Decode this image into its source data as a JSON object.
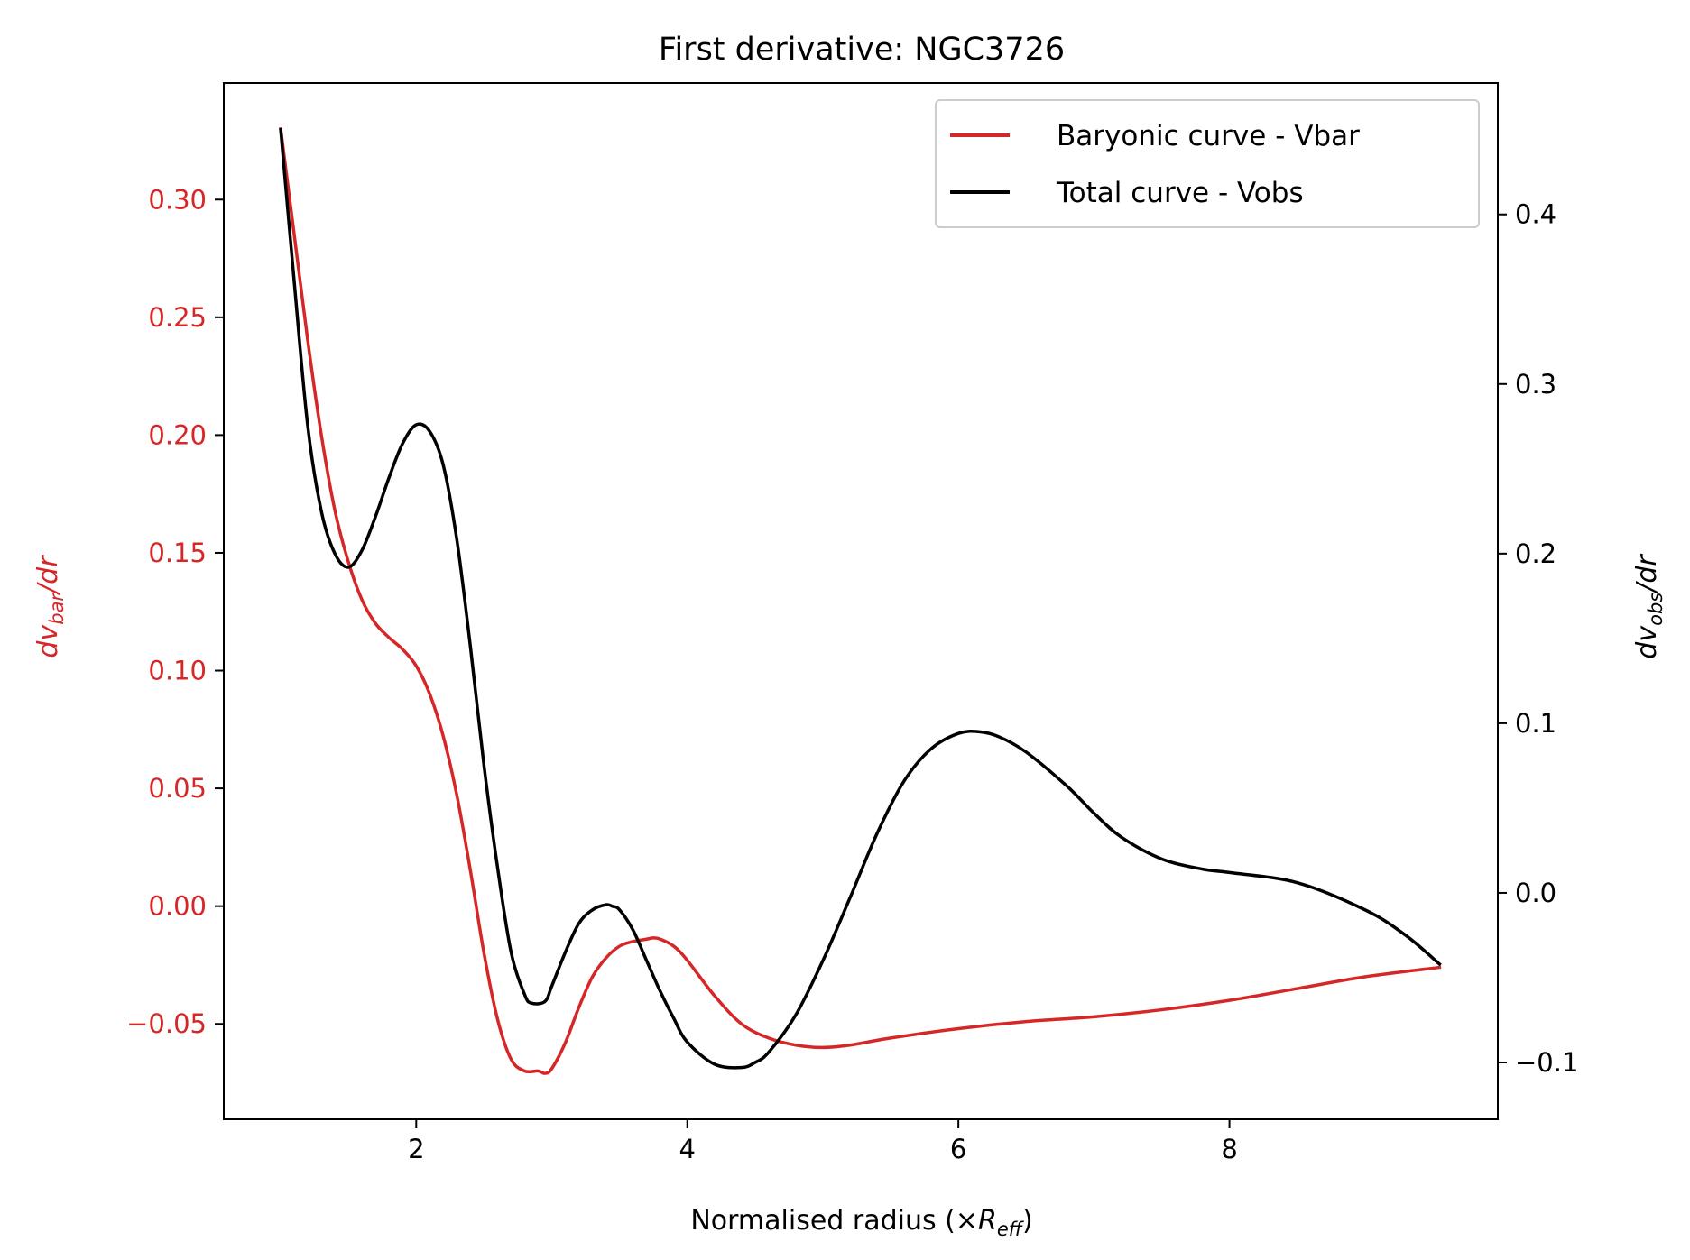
{
  "chart_data": {
    "type": "line",
    "title": "First derivative: NGC3726",
    "xlabel": {
      "main": "Normalised radius (×",
      "var": "R",
      "sub": "eff",
      "close": ")"
    },
    "ylabel_left": {
      "d": "dv",
      "sub": "bar",
      "rest": "/dr"
    },
    "ylabel_right": {
      "d": "dv",
      "sub": "obs",
      "rest": "/dr"
    },
    "xlim": [
      0.58,
      9.98
    ],
    "ylim_left": [
      -0.0905,
      0.3495
    ],
    "ylim_right": [
      -0.1335,
      0.4775
    ],
    "x_ticks": [
      2,
      4,
      6,
      8
    ],
    "x_tick_labels": [
      "2",
      "4",
      "6",
      "8"
    ],
    "y_left_ticks": [
      0.3,
      0.25,
      0.2,
      0.15,
      0.1,
      0.05,
      0.0,
      -0.05
    ],
    "y_left_tick_labels": [
      "0.30",
      "0.25",
      "0.20",
      "0.15",
      "0.10",
      "0.05",
      "0.00",
      "−0.05"
    ],
    "y_right_ticks": [
      0.4,
      0.3,
      0.2,
      0.1,
      0.0,
      -0.1
    ],
    "y_right_tick_labels": [
      "0.4",
      "0.3",
      "0.2",
      "0.1",
      "0.0",
      "−0.1"
    ],
    "legend_position": "top-right",
    "grid": false,
    "series": [
      {
        "name": "Baryonic curve - Vbar",
        "axis": "left",
        "color": "#d62728",
        "x": [
          1.0,
          1.1,
          1.2,
          1.3,
          1.4,
          1.5,
          1.6,
          1.7,
          1.8,
          1.9,
          2.0,
          2.1,
          2.2,
          2.3,
          2.4,
          2.5,
          2.6,
          2.7,
          2.8,
          2.9,
          2.95,
          3.0,
          3.1,
          3.2,
          3.3,
          3.4,
          3.5,
          3.6,
          3.7,
          3.75,
          3.8,
          3.9,
          4.0,
          4.2,
          4.4,
          4.6,
          4.8,
          5.0,
          5.2,
          5.5,
          6.0,
          6.5,
          7.0,
          7.5,
          8.0,
          8.5,
          9.0,
          9.55
        ],
        "y": [
          0.33,
          0.285,
          0.24,
          0.2,
          0.168,
          0.146,
          0.13,
          0.12,
          0.114,
          0.109,
          0.102,
          0.09,
          0.072,
          0.047,
          0.015,
          -0.02,
          -0.048,
          -0.065,
          -0.07,
          -0.07,
          -0.071,
          -0.069,
          -0.058,
          -0.043,
          -0.03,
          -0.022,
          -0.017,
          -0.015,
          -0.014,
          -0.0135,
          -0.014,
          -0.017,
          -0.023,
          -0.038,
          -0.05,
          -0.056,
          -0.059,
          -0.06,
          -0.059,
          -0.056,
          -0.052,
          -0.049,
          -0.047,
          -0.044,
          -0.04,
          -0.035,
          -0.03,
          -0.026
        ]
      },
      {
        "name": "Total curve - Vobs",
        "axis": "right",
        "color": "#000000",
        "x": [
          1.0,
          1.1,
          1.2,
          1.3,
          1.4,
          1.5,
          1.6,
          1.7,
          1.8,
          1.9,
          2.0,
          2.1,
          2.2,
          2.3,
          2.4,
          2.5,
          2.6,
          2.7,
          2.8,
          2.85,
          2.95,
          3.0,
          3.1,
          3.2,
          3.3,
          3.4,
          3.45,
          3.5,
          3.6,
          3.7,
          3.8,
          3.9,
          4.0,
          4.2,
          4.4,
          4.5,
          4.6,
          4.8,
          5.0,
          5.2,
          5.4,
          5.6,
          5.8,
          6.0,
          6.15,
          6.3,
          6.5,
          6.8,
          7.0,
          7.2,
          7.5,
          7.8,
          8.0,
          8.5,
          9.0,
          9.3,
          9.55
        ],
        "y": [
          0.45,
          0.36,
          0.275,
          0.225,
          0.2,
          0.192,
          0.202,
          0.222,
          0.245,
          0.265,
          0.276,
          0.272,
          0.252,
          0.208,
          0.145,
          0.075,
          0.015,
          -0.035,
          -0.06,
          -0.065,
          -0.064,
          -0.055,
          -0.035,
          -0.018,
          -0.01,
          -0.007,
          -0.008,
          -0.01,
          -0.022,
          -0.04,
          -0.058,
          -0.074,
          -0.088,
          -0.101,
          -0.103,
          -0.1,
          -0.094,
          -0.072,
          -0.04,
          -0.003,
          0.035,
          0.066,
          0.085,
          0.094,
          0.095,
          0.092,
          0.083,
          0.063,
          0.047,
          0.033,
          0.02,
          0.014,
          0.012,
          0.006,
          -0.01,
          -0.025,
          -0.042
        ]
      }
    ]
  }
}
